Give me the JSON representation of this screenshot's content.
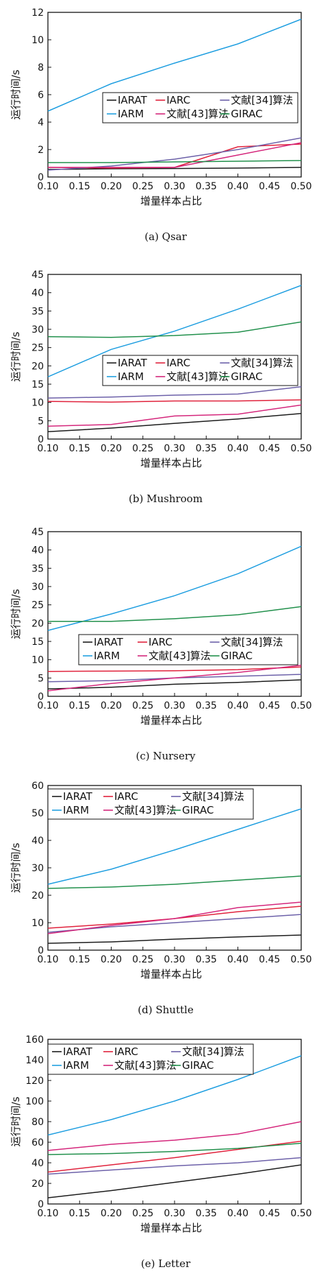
{
  "colors": {
    "IARAT": "#1a1a1a",
    "IARC": "#e0203a",
    "wenxian34": "#6b5fa8",
    "IARM": "#1e9ee0",
    "wenxian43": "#d4247a",
    "GIRAC": "#1f8f4a"
  },
  "chart_data": [
    {
      "type": "line",
      "caption": "(a) Qsar",
      "xlabel": "增量样本占比",
      "ylabel": "运行时间/s",
      "xlim": [
        0.1,
        0.5
      ],
      "ylim": [
        0,
        12
      ],
      "xticks": [
        "0.10",
        "0.15",
        "0.20",
        "0.25",
        "0.30",
        "0.35",
        "0.40",
        "0.45",
        "0.50"
      ],
      "yticks": [
        "0",
        "2",
        "4",
        "6",
        "8",
        "10",
        "12"
      ],
      "legend_position": "center-right",
      "x": [
        0.1,
        0.2,
        0.3,
        0.4,
        0.5
      ],
      "series": [
        {
          "name": "IARAT",
          "color_key": "IARAT",
          "values": [
            0.55,
            0.6,
            0.62,
            0.65,
            0.7
          ]
        },
        {
          "name": "IARC",
          "color_key": "IARC",
          "values": [
            0.7,
            0.65,
            0.7,
            2.2,
            2.4
          ]
        },
        {
          "name": "文献[34]算法",
          "color_key": "wenxian34",
          "values": [
            0.5,
            0.8,
            1.3,
            2.0,
            2.85
          ]
        },
        {
          "name": "IARM",
          "color_key": "IARM",
          "values": [
            4.8,
            6.8,
            8.3,
            9.7,
            11.5
          ]
        },
        {
          "name": "文献[43]算法",
          "color_key": "wenxian43",
          "values": [
            0.7,
            0.7,
            0.7,
            1.6,
            2.5
          ]
        },
        {
          "name": "GIRAC",
          "color_key": "GIRAC",
          "values": [
            1.05,
            1.05,
            1.1,
            1.15,
            1.2
          ]
        }
      ]
    },
    {
      "type": "line",
      "caption": "(b) Mushroom",
      "xlabel": "增量样本占比",
      "ylabel": "运行时间/s",
      "xlim": [
        0.1,
        0.5
      ],
      "ylim": [
        0,
        45
      ],
      "xticks": [
        "0.10",
        "0.15",
        "0.20",
        "0.25",
        "0.30",
        "0.35",
        "0.40",
        "0.45",
        "0.50"
      ],
      "yticks": [
        "0",
        "5",
        "10",
        "15",
        "20",
        "25",
        "30",
        "35",
        "40",
        "45"
      ],
      "legend_position": "center-right",
      "x": [
        0.1,
        0.2,
        0.3,
        0.4,
        0.5
      ],
      "series": [
        {
          "name": "IARAT",
          "color_key": "IARAT",
          "values": [
            2.0,
            3.0,
            4.3,
            5.5,
            7.0
          ]
        },
        {
          "name": "IARC",
          "color_key": "IARC",
          "values": [
            10.3,
            10.1,
            10.4,
            10.4,
            10.7
          ]
        },
        {
          "name": "文献[34]算法",
          "color_key": "wenxian34",
          "values": [
            11.2,
            11.5,
            12.0,
            12.3,
            14.3
          ]
        },
        {
          "name": "IARM",
          "color_key": "IARM",
          "values": [
            17.0,
            24.5,
            29.5,
            35.5,
            42.0
          ]
        },
        {
          "name": "文献[43]算法",
          "color_key": "wenxian43",
          "values": [
            3.5,
            4.0,
            6.3,
            6.8,
            9.3
          ]
        },
        {
          "name": "GIRAC",
          "color_key": "GIRAC",
          "values": [
            28.0,
            27.8,
            28.3,
            29.2,
            32.0
          ]
        }
      ]
    },
    {
      "type": "line",
      "caption": "(c) Nursery",
      "xlabel": "增量样本占比",
      "ylabel": "运行时间/s",
      "xlim": [
        0.1,
        0.5
      ],
      "ylim": [
        0,
        45
      ],
      "xticks": [
        "0.10",
        "0.15",
        "0.20",
        "0.25",
        "0.30",
        "0.35",
        "0.40",
        "0.45",
        "0.50"
      ],
      "yticks": [
        "0",
        "5",
        "10",
        "15",
        "20",
        "25",
        "30",
        "35",
        "40",
        "45"
      ],
      "legend_position": "center-right",
      "x": [
        0.1,
        0.2,
        0.3,
        0.4,
        0.5
      ],
      "series": [
        {
          "name": "IARAT",
          "color_key": "IARAT",
          "values": [
            2.0,
            2.5,
            3.3,
            3.8,
            4.5
          ]
        },
        {
          "name": "IARC",
          "color_key": "IARC",
          "values": [
            6.8,
            6.9,
            7.0,
            7.3,
            8.0
          ]
        },
        {
          "name": "文献[34]算法",
          "color_key": "wenxian34",
          "values": [
            4.0,
            4.3,
            5.0,
            5.5,
            6.0
          ]
        },
        {
          "name": "IARM",
          "color_key": "IARM",
          "values": [
            18.0,
            22.5,
            27.5,
            33.5,
            41.0
          ]
        },
        {
          "name": "文献[43]算法",
          "color_key": "wenxian43",
          "values": [
            1.5,
            3.5,
            5.0,
            6.5,
            8.5
          ]
        },
        {
          "name": "GIRAC",
          "color_key": "GIRAC",
          "values": [
            20.5,
            20.5,
            21.2,
            22.3,
            24.5
          ]
        }
      ]
    },
    {
      "type": "line",
      "caption": "(d) Shuttle",
      "xlabel": "增量样本占比",
      "ylabel": "运行时间/s",
      "xlim": [
        0.1,
        0.5
      ],
      "ylim": [
        0,
        60
      ],
      "xticks": [
        "0.10",
        "0.15",
        "0.20",
        "0.25",
        "0.30",
        "0.35",
        "0.40",
        "0.45",
        "0.50"
      ],
      "yticks": [
        "0",
        "10",
        "20",
        "30",
        "40",
        "50",
        "60"
      ],
      "legend_position": "top-right",
      "x": [
        0.1,
        0.2,
        0.3,
        0.4,
        0.5
      ],
      "series": [
        {
          "name": "IARAT",
          "color_key": "IARAT",
          "values": [
            2.5,
            3.0,
            4.0,
            4.8,
            5.5
          ]
        },
        {
          "name": "IARC",
          "color_key": "IARC",
          "values": [
            8.0,
            9.5,
            11.5,
            14.0,
            16.0
          ]
        },
        {
          "name": "文献[34]算法",
          "color_key": "wenxian34",
          "values": [
            6.5,
            8.5,
            10.0,
            11.5,
            13.0
          ]
        },
        {
          "name": "IARM",
          "color_key": "IARM",
          "values": [
            24.0,
            29.5,
            36.5,
            44.0,
            51.5
          ]
        },
        {
          "name": "文献[43]算法",
          "color_key": "wenxian43",
          "values": [
            6.0,
            9.0,
            11.5,
            15.5,
            17.5
          ]
        },
        {
          "name": "GIRAC",
          "color_key": "GIRAC",
          "values": [
            22.5,
            23.0,
            24.0,
            25.5,
            27.0
          ]
        }
      ]
    },
    {
      "type": "line",
      "caption": "(e) Letter",
      "xlabel": "增量样本占比",
      "ylabel": "运行时间/s",
      "xlim": [
        0.1,
        0.5
      ],
      "ylim": [
        0,
        160
      ],
      "xticks": [
        "0.10",
        "0.15",
        "0.20",
        "0.25",
        "0.30",
        "0.35",
        "0.40",
        "0.45",
        "0.50"
      ],
      "yticks": [
        "0",
        "20",
        "40",
        "60",
        "80",
        "100",
        "120",
        "140",
        "160"
      ],
      "legend_position": "top-right",
      "x": [
        0.1,
        0.2,
        0.3,
        0.4,
        0.5
      ],
      "series": [
        {
          "name": "IARAT",
          "color_key": "IARAT",
          "values": [
            6,
            13,
            21,
            29,
            38
          ]
        },
        {
          "name": "IARC",
          "color_key": "IARC",
          "values": [
            31,
            38,
            45,
            53,
            61
          ]
        },
        {
          "name": "文献[34]算法",
          "color_key": "wenxian34",
          "values": [
            29,
            33,
            37,
            40,
            45
          ]
        },
        {
          "name": "IARM",
          "color_key": "IARM",
          "values": [
            67,
            82,
            100,
            121,
            144
          ]
        },
        {
          "name": "文献[43]算法",
          "color_key": "wenxian43",
          "values": [
            52,
            58,
            62,
            68,
            80
          ]
        },
        {
          "name": "GIRAC",
          "color_key": "GIRAC",
          "values": [
            48,
            49,
            51,
            54,
            59
          ]
        }
      ]
    }
  ]
}
